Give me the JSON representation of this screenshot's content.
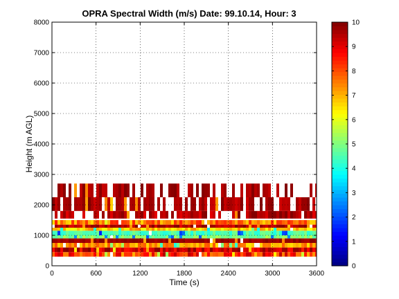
{
  "chart_data": {
    "type": "heatmap",
    "title": "OPRA Spectral Width (m/s)  Date: 99.10.14, Hour: 3",
    "xlabel": "Time (s)",
    "ylabel": "Height (m AGL)",
    "xlim": [
      0,
      3600
    ],
    "ylim": [
      0,
      8000
    ],
    "xticks": [
      "0",
      "600",
      "1200",
      "1800",
      "2400",
      "3000",
      "3600"
    ],
    "yticks": [
      "0",
      "1000",
      "2000",
      "3000",
      "4000",
      "5000",
      "6000",
      "7000",
      "8000"
    ],
    "grid": true,
    "colormap": "jet",
    "colorbar": {
      "min": 0,
      "max": 10,
      "ticks": [
        "0",
        "1",
        "2",
        "3",
        "4",
        "5",
        "6",
        "7",
        "8",
        "9",
        "10"
      ]
    },
    "bands": [
      {
        "bottom": 300,
        "top": 450,
        "value_range": [
          7,
          9.5
        ]
      },
      {
        "bottom": 450,
        "top": 600,
        "value_range": [
          8.5,
          10
        ]
      },
      {
        "bottom": 600,
        "top": 750,
        "value_range": [
          6.5,
          8
        ]
      },
      {
        "bottom": 750,
        "top": 900,
        "value_range": [
          9.5,
          10
        ]
      },
      {
        "bottom": 900,
        "top": 1000,
        "value_range": [
          4.5,
          5.5
        ]
      },
      {
        "bottom": 1000,
        "top": 1150,
        "value_range": [
          4,
          5
        ]
      },
      {
        "bottom": 1150,
        "top": 1250,
        "value_range": [
          6,
          7.5
        ]
      },
      {
        "bottom": 1250,
        "top": 1350,
        "value_range": [
          9,
          10
        ]
      },
      {
        "bottom": 1350,
        "top": 1500,
        "value_range": [
          6.5,
          8.5
        ]
      },
      {
        "bottom": 1550,
        "top": 1800,
        "value_range": [
          9,
          10
        ]
      },
      {
        "bottom": 1800,
        "top": 2250,
        "value_range": [
          9.2,
          10
        ]
      },
      {
        "bottom": 2250,
        "top": 2700,
        "value_range": [
          9.3,
          10
        ]
      }
    ]
  }
}
